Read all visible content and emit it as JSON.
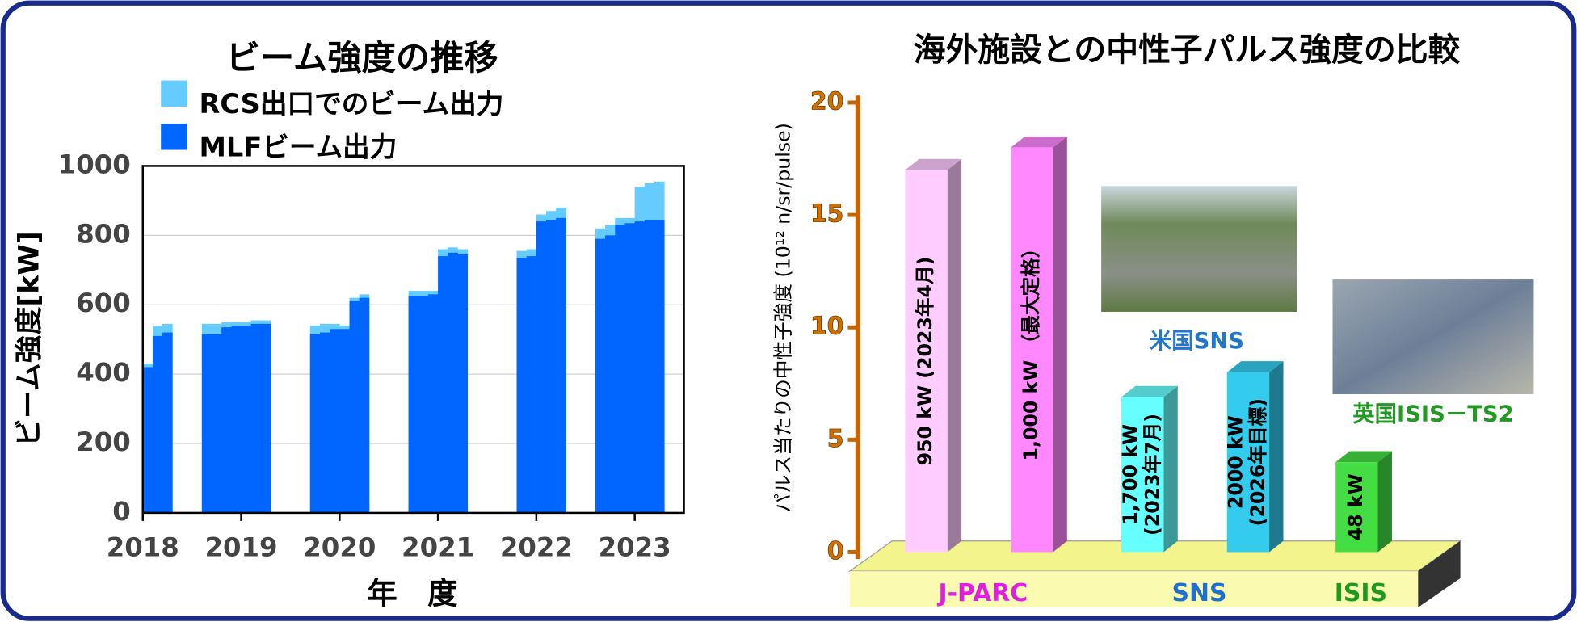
{
  "chart_data": [
    {
      "type": "bar",
      "title": "ビーム強度の推移",
      "x_label": "年　度",
      "y_label": "ビーム強度[kW]",
      "x": [
        2018.0,
        2018.1,
        2018.2,
        2018.3,
        2018.4,
        2018.5,
        2018.6,
        2018.7,
        2018.8,
        2018.9,
        2019.0,
        2019.1,
        2019.2,
        2019.3,
        2019.4,
        2019.5,
        2019.6,
        2019.7,
        2019.8,
        2019.9,
        2020.0,
        2020.1,
        2020.2,
        2020.3,
        2020.4,
        2020.5,
        2020.6,
        2020.7,
        2020.8,
        2020.9,
        2021.0,
        2021.1,
        2021.2,
        2021.3,
        2021.4,
        2021.5,
        2021.6,
        2021.7,
        2021.8,
        2021.9,
        2022.0,
        2022.1,
        2022.2,
        2022.3,
        2022.4,
        2022.5,
        2022.6,
        2022.7,
        2022.8,
        2022.9,
        2023.0,
        2023.1,
        2023.2,
        2023.3,
        2023.4,
        2023.5
      ],
      "series": [
        {
          "name": "RCS出口でのビーム出力",
          "color": "#66ccff",
          "values": [
            430,
            540,
            545,
            null,
            null,
            null,
            545,
            545,
            550,
            550,
            550,
            555,
            555,
            null,
            null,
            null,
            null,
            540,
            545,
            545,
            540,
            620,
            630,
            null,
            null,
            null,
            null,
            640,
            640,
            640,
            760,
            765,
            760,
            null,
            null,
            null,
            null,
            null,
            755,
            760,
            860,
            870,
            880,
            null,
            null,
            null,
            820,
            830,
            850,
            850,
            940,
            950,
            955,
            null,
            null,
            null
          ]
        },
        {
          "name": "MLFビーム出力",
          "color": "#0066ff",
          "values": [
            420,
            510,
            520,
            null,
            null,
            null,
            515,
            515,
            535,
            540,
            540,
            545,
            545,
            null,
            null,
            null,
            null,
            515,
            520,
            530,
            530,
            610,
            620,
            null,
            null,
            null,
            null,
            625,
            625,
            630,
            740,
            750,
            745,
            null,
            null,
            null,
            null,
            null,
            735,
            740,
            840,
            845,
            850,
            null,
            null,
            null,
            790,
            800,
            830,
            835,
            840,
            845,
            845,
            null,
            null,
            null
          ]
        }
      ],
      "xlim": [
        2018,
        2023.5
      ],
      "xticks": [
        2018,
        2019,
        2020,
        2021,
        2022,
        2023
      ],
      "ylim": [
        0,
        1000
      ],
      "yticks": [
        0,
        200,
        400,
        600,
        800,
        1000
      ],
      "grid": true
    },
    {
      "type": "bar3d",
      "title": "海外施設との中性子パルス強度の比較",
      "y_label": "パルス当たりの中性子強度 (10¹² n/sr/pulse)",
      "categories": [
        [
          "950 kW (2023年4月)"
        ],
        [
          "1,000 kW （最大定格）"
        ],
        [
          "1,700 kW",
          "(2023年7月)"
        ],
        [
          "2000 kW",
          "(2026年目標)"
        ],
        [
          "48 kW"
        ]
      ],
      "values": [
        17.0,
        18.0,
        6.9,
        8.0,
        4.0
      ],
      "colors": [
        "#ffccff",
        "#ff88ff",
        "#66ffff",
        "#33ccee",
        "#44dd44"
      ],
      "groups": [
        {
          "name": "J-PARC",
          "color": "#e020e0",
          "size": 2
        },
        {
          "name": "SNS",
          "color": "#1f6fd0",
          "size": 2
        },
        {
          "name": "ISIS",
          "color": "#1f9a1f",
          "size": 1
        }
      ],
      "annotations": [
        {
          "text": "米国SNS",
          "color": "#2277cc"
        },
        {
          "text": "英国ISIS－TS2",
          "color": "#229922"
        }
      ],
      "ylim": [
        0,
        20
      ],
      "yticks": [
        0,
        5,
        10,
        15,
        20
      ]
    }
  ]
}
